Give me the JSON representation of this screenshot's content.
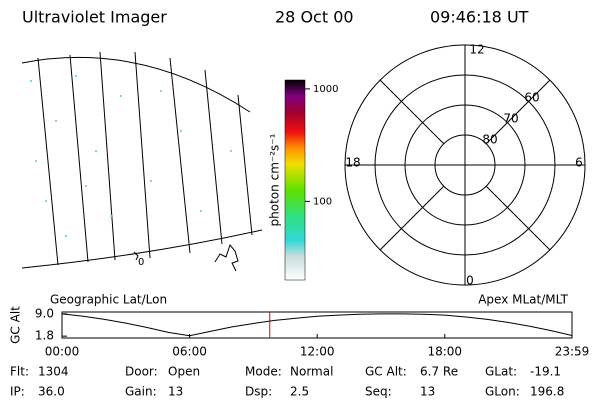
{
  "header": {
    "instrument": "Ultraviolet Imager",
    "date": "28 Oct 00",
    "time": "09:46:18 UT"
  },
  "map": {
    "grid_label": "0"
  },
  "colorbar": {
    "label": "photon cm⁻²s⁻¹",
    "log_scale": true,
    "lim": [
      20,
      1200
    ],
    "ticks": [
      100,
      1000
    ]
  },
  "polar": {
    "rlim": [
      90,
      50
    ],
    "rings": [
      60,
      70,
      80
    ],
    "mlt_labels": [
      "12",
      "18",
      "6",
      "0"
    ]
  },
  "altitude": {
    "ylabel": "GC Alt",
    "title_left": "Geographic Lat/Lon",
    "title_right": "Apex MLat/MLT",
    "ylim": [
      1.2,
      9.6
    ],
    "yticks": [
      1.8,
      {
        "value": 9,
        "label": "9.0"
      }
    ],
    "xlim": [
      0,
      23.983
    ],
    "xticks": [
      {
        "value": 0,
        "label": "00:00"
      },
      {
        "value": 6,
        "label": "06:00"
      },
      {
        "value": 12,
        "label": "12:00"
      },
      {
        "value": 18,
        "label": "18:00"
      },
      {
        "value": 23.983,
        "label": "23:59"
      }
    ],
    "x": [
      0,
      1,
      2,
      3,
      4,
      5,
      6,
      7,
      8,
      9,
      10,
      11,
      12,
      13,
      14,
      15,
      16,
      17,
      18,
      19,
      20,
      21,
      22,
      23,
      23.983
    ],
    "values": [
      9.0,
      8.2,
      7.2,
      6.0,
      4.6,
      3.0,
      1.9,
      3.4,
      4.8,
      5.9,
      6.9,
      7.6,
      8.2,
      8.6,
      8.9,
      9.0,
      9.0,
      8.9,
      8.6,
      8.0,
      7.2,
      6.2,
      5.0,
      3.6,
      2.0
    ],
    "color": "#000000",
    "current_time": 9.77,
    "current_color": "#e00000"
  },
  "info": [
    [
      {
        "label": "Flt:",
        "value": "1304"
      },
      {
        "label": "Door:",
        "value": "Open"
      },
      {
        "label": "Mode:",
        "value": "Normal"
      },
      {
        "label": "GC Alt:",
        "value": "6.7 Re"
      },
      {
        "label": "GLat:",
        "value": "-19.1"
      }
    ],
    [
      {
        "label": "IP:",
        "value": "36.0"
      },
      {
        "label": "Gain:",
        "value": "13"
      },
      {
        "label": "Dsp:",
        "value": "2.5"
      },
      {
        "label": "Seq:",
        "value": "13"
      },
      {
        "label": "GLon:",
        "value": "196.8"
      }
    ]
  ]
}
